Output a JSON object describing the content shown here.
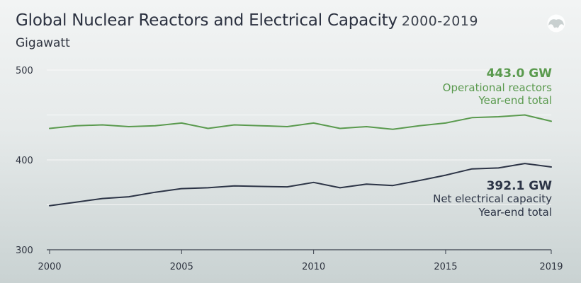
{
  "title": "Global Nuclear Reactors and Electrical Capacity",
  "year_range": "2000-2019",
  "subtitle": "Gigawatt",
  "logo": "elephant-logo-icon",
  "colors": {
    "operational": "#5a9a4e",
    "net": "#2c3446",
    "grid": "#ffffff",
    "axis": "#3a404c"
  },
  "chart_data": {
    "type": "line",
    "xlim": [
      2000,
      2019
    ],
    "ylim": [
      300,
      500
    ],
    "x_ticks": [
      "2000",
      "2005",
      "2010",
      "2015",
      "2019"
    ],
    "y_ticks": [
      "500",
      "400",
      "300"
    ],
    "x": [
      2000,
      2001,
      2002,
      2003,
      2004,
      2005,
      2006,
      2007,
      2008,
      2009,
      2010,
      2011,
      2012,
      2013,
      2014,
      2015,
      2016,
      2017,
      2018,
      2019
    ],
    "series": [
      {
        "key": "operational",
        "name": "Operational reactors",
        "values": [
          435,
          438,
          439,
          437,
          438,
          441,
          435,
          439,
          438,
          437,
          441,
          435,
          437,
          434,
          438,
          441,
          447,
          448,
          450,
          443.0
        ],
        "label_value": "443.0 GW",
        "label_line1": "Operational reactors",
        "label_line2": "Year-end total"
      },
      {
        "key": "net",
        "name": "Net electrical capacity",
        "values": [
          349,
          353,
          357,
          359,
          364,
          368,
          369,
          371,
          370.5,
          370,
          375,
          369,
          373,
          371.5,
          377,
          383,
          390,
          391,
          396,
          392.1
        ],
        "label_value": "392.1 GW",
        "label_line1": "Net electrical capacity",
        "label_line2": "Year-end total"
      }
    ]
  }
}
